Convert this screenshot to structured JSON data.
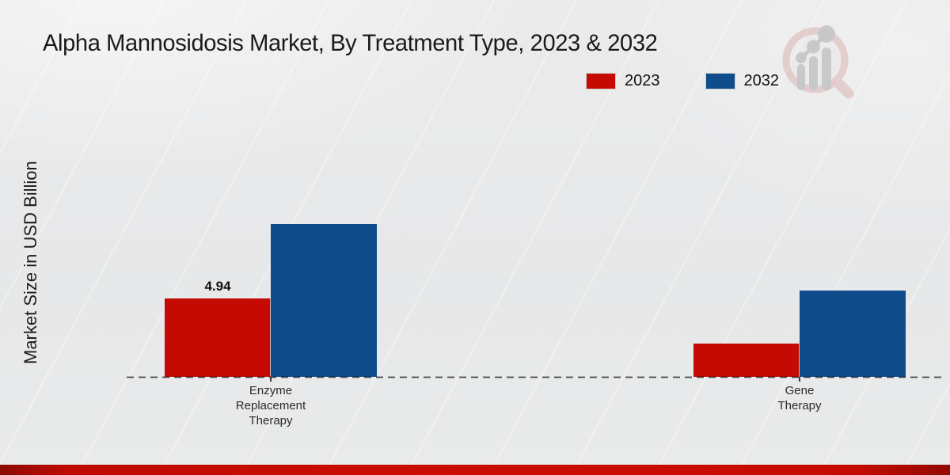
{
  "page_title": "Alpha Mannosidosis Market, By Treatment Type, 2023 & 2032",
  "y_axis_label": "Market Size in USD Billion",
  "legend": [
    {
      "label": "2023",
      "color": "#c40a02"
    },
    {
      "label": "2032",
      "color": "#0f4c8c"
    }
  ],
  "branding": {
    "logo": "magnifier-bar-chart-logo"
  },
  "accent_colors": {
    "series_2023": "#c40a02",
    "series_2032": "#0f4c8c",
    "footer_band": "#c50b00"
  },
  "chart_data": {
    "type": "bar",
    "title": "Alpha Mannosidosis Market, By Treatment Type, 2023 & 2032",
    "xlabel": "",
    "ylabel": "Market Size in USD Billion",
    "categories": [
      "Enzyme Replacement Therapy",
      "Gene Therapy"
    ],
    "categories_display": [
      [
        "Enzyme",
        "Replacement",
        "Therapy"
      ],
      [
        "Gene",
        "Therapy"
      ]
    ],
    "series": [
      {
        "name": "2023",
        "color": "#c40a02",
        "values": [
          4.94,
          2.1
        ]
      },
      {
        "name": "2032",
        "color": "#0f4c8c",
        "values": [
          9.65,
          5.45
        ]
      }
    ],
    "value_labels": [
      {
        "series_index": 0,
        "category_index": 0,
        "text": "4.94"
      }
    ],
    "grid": false,
    "legend_position": "upper right",
    "baseline_style": "dashed"
  }
}
